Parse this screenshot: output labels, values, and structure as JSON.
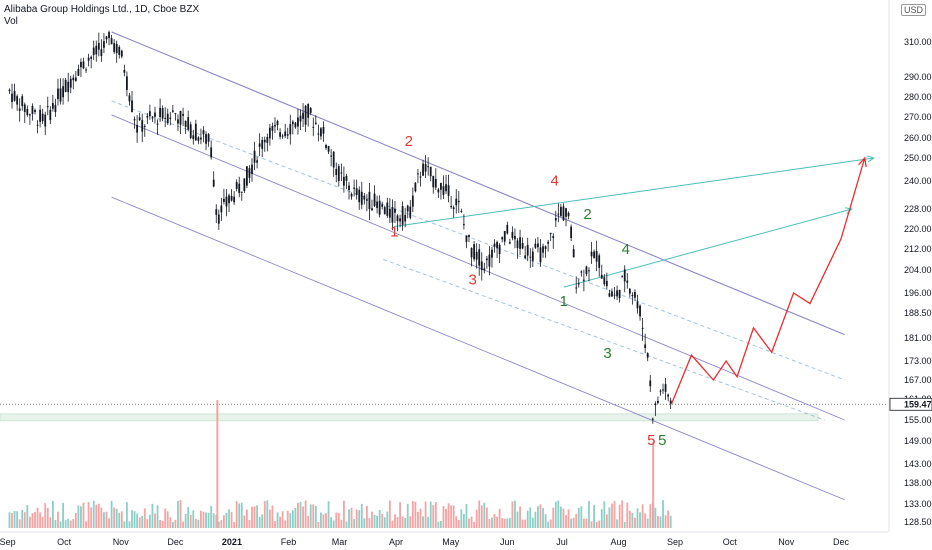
{
  "header": {
    "title": "Alibaba Group Holdings Ltd., 1D, Cboe BZX",
    "vol_label": "Vol",
    "currency": "USD"
  },
  "colors": {
    "bar": "#131722",
    "channel": "#8b87c9",
    "channel_mid": "#a7c4de",
    "triangle": "#4dbdb7",
    "forecast": "#ef2b2b",
    "wave_red": "#e53935",
    "wave_green": "#2e7d32",
    "vol_red": "#f5a3a3",
    "vol_green": "#8ccfc7",
    "zone": "#e6f2ea"
  },
  "chart_data": {
    "type": "candlestick",
    "title": "Alibaba Group Holdings Ltd., 1D, Cboe BZX",
    "ylabel": "USD",
    "y_scale": "log",
    "ylim": [
      126,
      322
    ],
    "y_ticks": [
      "310.00",
      "290.00",
      "280.00",
      "270.00",
      "260.00",
      "250.00",
      "240.00",
      "228.00",
      "220.00",
      "212.00",
      "204.00",
      "196.00",
      "188.50",
      "181.00",
      "173.00",
      "167.00",
      "161.00",
      "155.00",
      "149.00",
      "143.00",
      "138.00",
      "133.00",
      "128.50"
    ],
    "x_ticks": [
      "Sep",
      "Oct",
      "Nov",
      "Dec",
      "2021",
      "Feb",
      "Mar",
      "Apr",
      "May",
      "Jun",
      "Jul",
      "Aug",
      "Sep",
      "Oct",
      "Nov",
      "Dec"
    ],
    "last_price": "159.47",
    "price_path": [
      {
        "date": "2020-09-01",
        "price": 283
      },
      {
        "date": "2020-09-10",
        "price": 274
      },
      {
        "date": "2020-09-20",
        "price": 268
      },
      {
        "date": "2020-09-28",
        "price": 280
      },
      {
        "date": "2020-10-08",
        "price": 294
      },
      {
        "date": "2020-10-20",
        "price": 305
      },
      {
        "date": "2020-10-27",
        "price": 312
      },
      {
        "date": "2020-11-02",
        "price": 300
      },
      {
        "date": "2020-11-05",
        "price": 285
      },
      {
        "date": "2020-11-10",
        "price": 265
      },
      {
        "date": "2020-11-20",
        "price": 270
      },
      {
        "date": "2020-12-01",
        "price": 272
      },
      {
        "date": "2020-12-10",
        "price": 264
      },
      {
        "date": "2020-12-20",
        "price": 258
      },
      {
        "date": "2020-12-24",
        "price": 225
      },
      {
        "date": "2020-12-31",
        "price": 232
      },
      {
        "date": "2021-01-08",
        "price": 240
      },
      {
        "date": "2021-01-20",
        "price": 262
      },
      {
        "date": "2021-02-01",
        "price": 265
      },
      {
        "date": "2021-02-12",
        "price": 272
      },
      {
        "date": "2021-02-20",
        "price": 262
      },
      {
        "date": "2021-03-01",
        "price": 242
      },
      {
        "date": "2021-03-10",
        "price": 234
      },
      {
        "date": "2021-03-20",
        "price": 231
      },
      {
        "date": "2021-03-31",
        "price": 225
      },
      {
        "date": "2021-04-08",
        "price": 226
      },
      {
        "date": "2021-04-15",
        "price": 246
      },
      {
        "date": "2021-04-25",
        "price": 238
      },
      {
        "date": "2021-05-05",
        "price": 230
      },
      {
        "date": "2021-05-12",
        "price": 212
      },
      {
        "date": "2021-05-20",
        "price": 206
      },
      {
        "date": "2021-06-01",
        "price": 218
      },
      {
        "date": "2021-06-10",
        "price": 212
      },
      {
        "date": "2021-06-22",
        "price": 210
      },
      {
        "date": "2021-06-30",
        "price": 228
      },
      {
        "date": "2021-07-05",
        "price": 224
      },
      {
        "date": "2021-07-09",
        "price": 200
      },
      {
        "date": "2021-07-20",
        "price": 210
      },
      {
        "date": "2021-07-27",
        "price": 196
      },
      {
        "date": "2021-07-30",
        "price": 194
      },
      {
        "date": "2021-08-05",
        "price": 202
      },
      {
        "date": "2021-08-12",
        "price": 192
      },
      {
        "date": "2021-08-17",
        "price": 175
      },
      {
        "date": "2021-08-20",
        "price": 156
      },
      {
        "date": "2021-08-25",
        "price": 165
      },
      {
        "date": "2021-08-30",
        "price": 160
      }
    ],
    "forecast_path": [
      {
        "date": "2021-08-30",
        "price": 159.5
      },
      {
        "date": "2021-09-10",
        "price": 175
      },
      {
        "date": "2021-09-22",
        "price": 167
      },
      {
        "date": "2021-09-29",
        "price": 173
      },
      {
        "date": "2021-10-05",
        "price": 168
      },
      {
        "date": "2021-10-14",
        "price": 184
      },
      {
        "date": "2021-10-24",
        "price": 176
      },
      {
        "date": "2021-11-05",
        "price": 196
      },
      {
        "date": "2021-11-14",
        "price": 192
      },
      {
        "date": "2021-12-01",
        "price": 216
      },
      {
        "date": "2021-12-14",
        "price": 250
      }
    ],
    "volume_spikes": [
      {
        "date": "2020-12-24",
        "level": "max"
      },
      {
        "date": "2021-08-20",
        "level": "high"
      }
    ],
    "annotations": [
      {
        "text": "1",
        "color": "red",
        "date": "2021-03-31",
        "price": 217
      },
      {
        "text": "2",
        "color": "red",
        "date": "2021-04-08",
        "price": 256
      },
      {
        "text": "3",
        "color": "red",
        "date": "2021-05-13",
        "price": 199
      },
      {
        "text": "4",
        "color": "red",
        "date": "2021-06-27",
        "price": 238
      },
      {
        "text": "5",
        "color": "red",
        "date": "2021-08-19",
        "price": 148
      },
      {
        "text": "1",
        "color": "green",
        "date": "2021-07-02",
        "price": 191
      },
      {
        "text": "2",
        "color": "green",
        "date": "2021-07-15",
        "price": 224
      },
      {
        "text": "3",
        "color": "green",
        "date": "2021-07-26",
        "price": 174
      },
      {
        "text": "4",
        "color": "green",
        "date": "2021-08-05",
        "price": 210
      },
      {
        "text": "5",
        "color": "green",
        "date": "2021-08-25",
        "price": 148
      }
    ]
  }
}
